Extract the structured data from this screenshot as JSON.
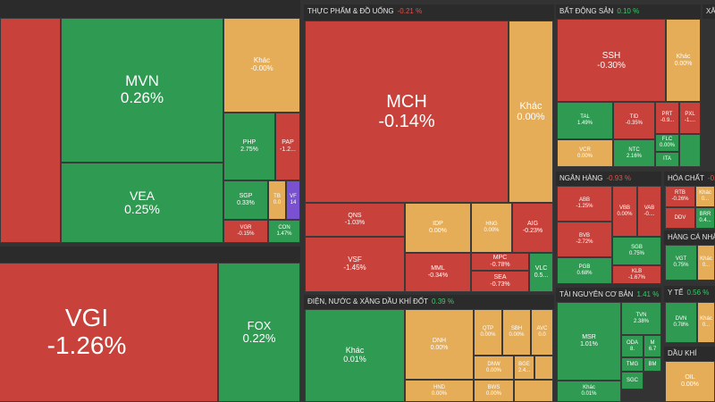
{
  "sectors": [
    {
      "tiles": [
        {
          "symbol": "MVN",
          "change": "0.26%"
        },
        {
          "symbol": "VEA",
          "change": "0.25%"
        },
        {
          "symbol": "Khác",
          "change": "-0.00%"
        },
        {
          "symbol": "PHP",
          "change": "2.75%"
        },
        {
          "symbol": "PAP",
          "change": "-1.2..."
        },
        {
          "symbol": "SGP",
          "change": "0.33%"
        },
        {
          "symbol": "TB",
          "change": "0.0"
        },
        {
          "symbol": "VF",
          "change": "14"
        },
        {
          "symbol": "VGR",
          "change": "-0.15%"
        },
        {
          "symbol": "CON",
          "change": "1.47%"
        }
      ]
    },
    {
      "tiles": [
        {
          "symbol": "VGI",
          "change": "-1.26%"
        },
        {
          "symbol": "FOX",
          "change": "0.22%"
        }
      ]
    },
    {
      "title": "THỰC PHẨM & ĐỒ UỐNG",
      "change": "-0.21 %",
      "tiles": [
        {
          "symbol": "MCH",
          "change": "-0.14%"
        },
        {
          "symbol": "Khác",
          "change": "0.00%"
        },
        {
          "symbol": "QNS",
          "change": "-1.03%"
        },
        {
          "symbol": "VSF",
          "change": "-1.45%"
        },
        {
          "symbol": "IDP",
          "change": "0.00%"
        },
        {
          "symbol": "MML",
          "change": "-0.34%"
        },
        {
          "symbol": "HNG",
          "change": "0.00%"
        },
        {
          "symbol": "AIG",
          "change": "-0.23%"
        },
        {
          "symbol": "MPC",
          "change": "-0.78%"
        },
        {
          "symbol": "SEA",
          "change": "-0.73%"
        },
        {
          "symbol": "VLC",
          "change": "0.5..."
        }
      ]
    },
    {
      "title": "ĐIỆN, NƯỚC & XĂNG DẦU KHÍ ĐỐT",
      "change": "0.39 %",
      "tiles": [
        {
          "symbol": "Khác",
          "change": "0.01%"
        },
        {
          "symbol": "DNH",
          "change": "0.00%"
        },
        {
          "symbol": "HND",
          "change": "0.00%"
        },
        {
          "symbol": "QTP",
          "change": "0.00%"
        },
        {
          "symbol": "SBH",
          "change": "0.00%"
        },
        {
          "symbol": "AVC",
          "change": "0.0"
        },
        {
          "symbol": "DNW",
          "change": "0.00%"
        },
        {
          "symbol": "BGE",
          "change": "2.4..."
        },
        {
          "symbol": "BWS",
          "change": "0.00%"
        }
      ]
    },
    {
      "title": "BẤT ĐỘNG SẢN",
      "change": "0.10 %",
      "tiles": [
        {
          "symbol": "SSH",
          "change": "-0.30%"
        },
        {
          "symbol": "Khác",
          "change": "0.00%"
        },
        {
          "symbol": "TAL",
          "change": "1.49%"
        },
        {
          "symbol": "VCR",
          "change": "0.00%"
        },
        {
          "symbol": "TID",
          "change": "-0.35%"
        },
        {
          "symbol": "NTC",
          "change": "2.16%"
        },
        {
          "symbol": "PRT",
          "change": "-0.9..."
        },
        {
          "symbol": "PXL",
          "change": "-1...."
        },
        {
          "symbol": "FLC",
          "change": "0.00%"
        },
        {
          "symbol": "ITA"
        }
      ]
    },
    {
      "title": "NGÂN HÀNG",
      "change": "-0.93 %",
      "tiles": [
        {
          "symbol": "ABB",
          "change": "-1.25%"
        },
        {
          "symbol": "BVB",
          "change": "-2.72%"
        },
        {
          "symbol": "PGB",
          "change": "0.68%"
        },
        {
          "symbol": "VBB",
          "change": "0.00%"
        },
        {
          "symbol": "VAB",
          "change": "-0...."
        },
        {
          "symbol": "SGB",
          "change": "0.75%"
        },
        {
          "symbol": "KLB",
          "change": "-1.67%"
        }
      ]
    },
    {
      "title": "TÀI NGUYÊN CƠ BẢN",
      "change": "1.41 %",
      "tiles": [
        {
          "symbol": "MSR",
          "change": "1.01%"
        },
        {
          "symbol": "Khác",
          "change": "0.01%"
        },
        {
          "symbol": "TVN",
          "change": "2.38%"
        },
        {
          "symbol": "ODA",
          "change": "8."
        },
        {
          "symbol": "M",
          "change": "6.7"
        },
        {
          "symbol": "TMG"
        },
        {
          "symbol": "BM"
        },
        {
          "symbol": "SGC"
        }
      ]
    },
    {
      "title": "HÓA CHẤT",
      "change": "-0...",
      "tiles": [
        {
          "symbol": "RTB",
          "change": "-0.26%"
        },
        {
          "symbol": "Khác",
          "change": "0..."
        },
        {
          "symbol": "DDV"
        },
        {
          "symbol": "BRR",
          "change": "0.4..."
        }
      ]
    },
    {
      "title": "HÀNG CÁ NHÂN",
      "tiles": [
        {
          "symbol": "VGT",
          "change": "0.75%"
        },
        {
          "symbol": "Khác",
          "change": "0..."
        }
      ]
    },
    {
      "title": "Y TẾ",
      "change": "0.56 %",
      "tiles": [
        {
          "symbol": "DVN",
          "change": "0.78%"
        },
        {
          "symbol": "Khác",
          "change": "0..."
        }
      ]
    },
    {
      "title": "DẦU KHÍ",
      "tiles": [
        {
          "symbol": "OIL",
          "change": "0.00%"
        }
      ]
    },
    {
      "title": "XÂ",
      "tiles": []
    }
  ]
}
